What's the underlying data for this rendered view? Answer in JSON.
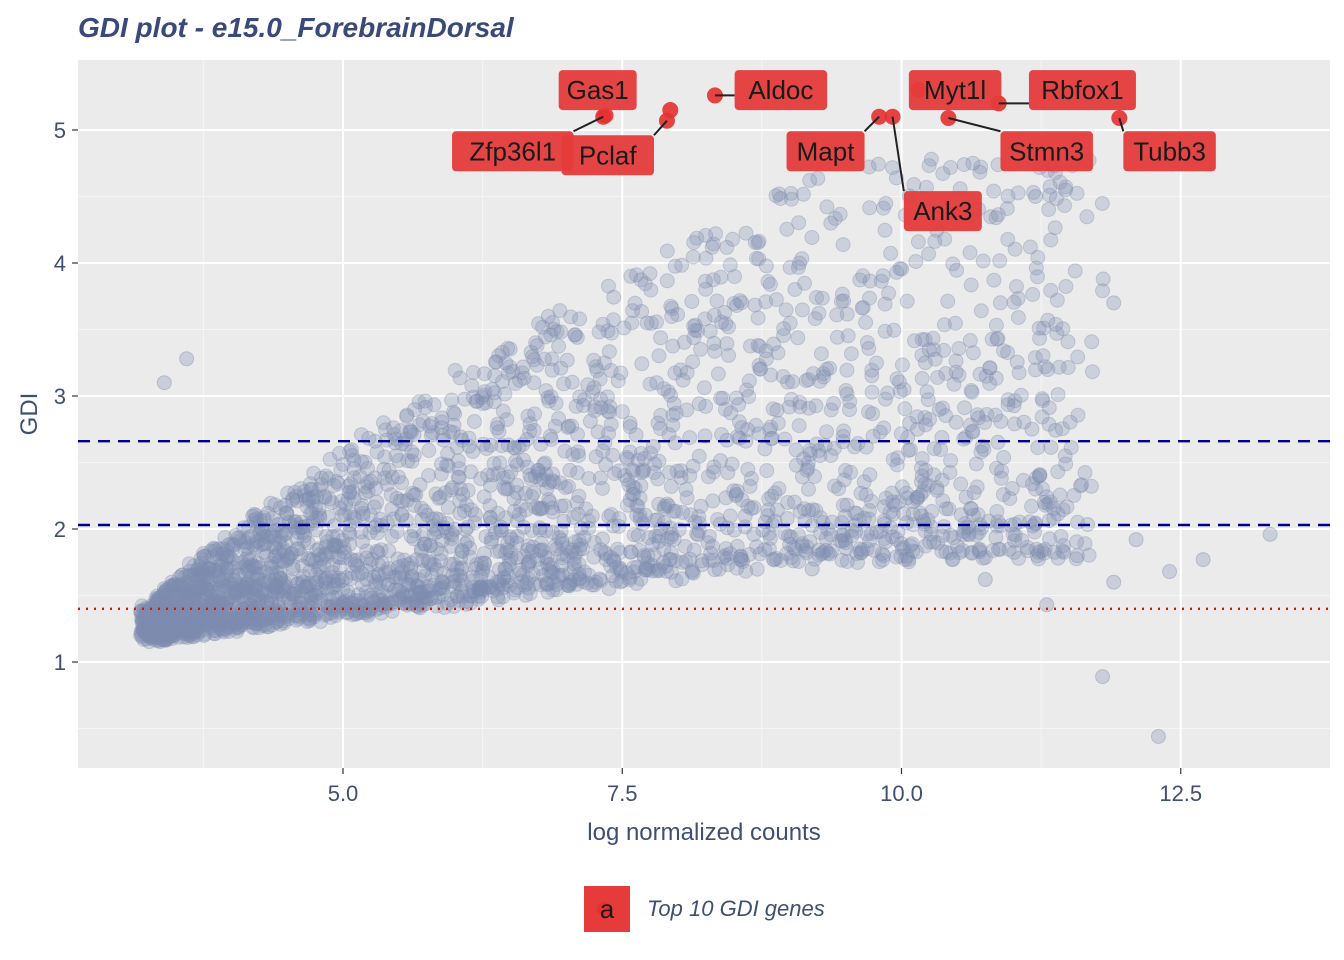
{
  "chart_data": {
    "type": "scatter",
    "title": "GDI plot - e15.0_ForebrainDorsal",
    "xlabel": "log normalized counts",
    "ylabel": "GDI",
    "xlim": [
      2.6,
      13.8
    ],
    "ylim": [
      0.15,
      5.5
    ],
    "x_ticks": [
      5.0,
      7.5,
      10.0,
      12.5
    ],
    "x_tick_labels": [
      "5.0",
      "7.5",
      "10.0",
      "12.5"
    ],
    "y_ticks": [
      1,
      2,
      3,
      4,
      5
    ],
    "y_tick_labels": [
      "1",
      "2",
      "3",
      "4",
      "5"
    ],
    "grid": true,
    "legend_position": "bottom",
    "colors": {
      "background": "#ebebeb",
      "points": "#7f8bb0",
      "highlight": "#e53030",
      "label_fill": "#e53b3b",
      "dashed_lines": "#00008b",
      "dotted_line": "#ff0000"
    },
    "hlines": [
      {
        "y": 2.66,
        "style": "dashed",
        "color": "#00008b"
      },
      {
        "y": 2.03,
        "style": "dashed",
        "color": "#00008b"
      },
      {
        "y": 1.4,
        "style": "dotted",
        "color": "#ff0000"
      }
    ],
    "background_points": {
      "note_count": 3000,
      "representative_outliers": [
        {
          "x": 12.3,
          "y": 0.44
        },
        {
          "x": 11.8,
          "y": 0.89
        },
        {
          "x": 13.3,
          "y": 1.96
        },
        {
          "x": 12.7,
          "y": 1.77
        },
        {
          "x": 12.4,
          "y": 1.68
        },
        {
          "x": 11.9,
          "y": 1.6
        },
        {
          "x": 11.3,
          "y": 1.43
        },
        {
          "x": 11.9,
          "y": 3.7
        },
        {
          "x": 12.1,
          "y": 1.92
        },
        {
          "x": 11.2,
          "y": 4.5
        },
        {
          "x": 10.75,
          "y": 1.62
        },
        {
          "x": 9.2,
          "y": 1.7
        },
        {
          "x": 3.6,
          "y": 3.28
        },
        {
          "x": 3.4,
          "y": 3.1
        }
      ]
    },
    "highlighted_points": [
      {
        "gene": "Gas1",
        "x": 7.35,
        "y": 5.11
      },
      {
        "gene": "Zfp36l1",
        "x": 7.33,
        "y": 5.1
      },
      {
        "gene": "Pclaf",
        "x": 7.9,
        "y": 5.07
      },
      {
        "gene": "Aldoc",
        "x": 8.33,
        "y": 5.26
      },
      {
        "gene": "Mapt",
        "x": 9.8,
        "y": 5.1
      },
      {
        "gene": "Ank3",
        "x": 9.92,
        "y": 5.1
      },
      {
        "gene": "Myt1l",
        "x": 10.15,
        "y": 5.3
      },
      {
        "gene": "Stmn3",
        "x": 10.42,
        "y": 5.09
      },
      {
        "gene": "Rbfox1",
        "x": 10.87,
        "y": 5.2
      },
      {
        "gene": "Tubb3",
        "x": 11.95,
        "y": 5.09
      },
      {
        "gene": "",
        "x": 7.93,
        "y": 5.15
      }
    ],
    "labels": [
      {
        "text": "Gas1",
        "lx": 7.28,
        "ly": 5.3
      },
      {
        "text": "Aldoc",
        "lx": 8.92,
        "ly": 5.3
      },
      {
        "text": "Myt1l",
        "lx": 10.48,
        "ly": 5.3
      },
      {
        "text": "Rbfox1",
        "lx": 11.62,
        "ly": 5.3
      },
      {
        "text": "Zfp36l1",
        "lx": 6.52,
        "ly": 4.84
      },
      {
        "text": "Pclaf",
        "lx": 7.37,
        "ly": 4.81
      },
      {
        "text": "Mapt",
        "lx": 9.32,
        "ly": 4.84
      },
      {
        "text": "Stmn3",
        "lx": 11.3,
        "ly": 4.84
      },
      {
        "text": "Tubb3",
        "lx": 12.4,
        "ly": 4.84
      },
      {
        "text": "Ank3",
        "lx": 10.37,
        "ly": 4.39
      }
    ],
    "legend": {
      "key_glyph": "a",
      "entries": [
        "Top 10 GDI genes"
      ]
    }
  }
}
